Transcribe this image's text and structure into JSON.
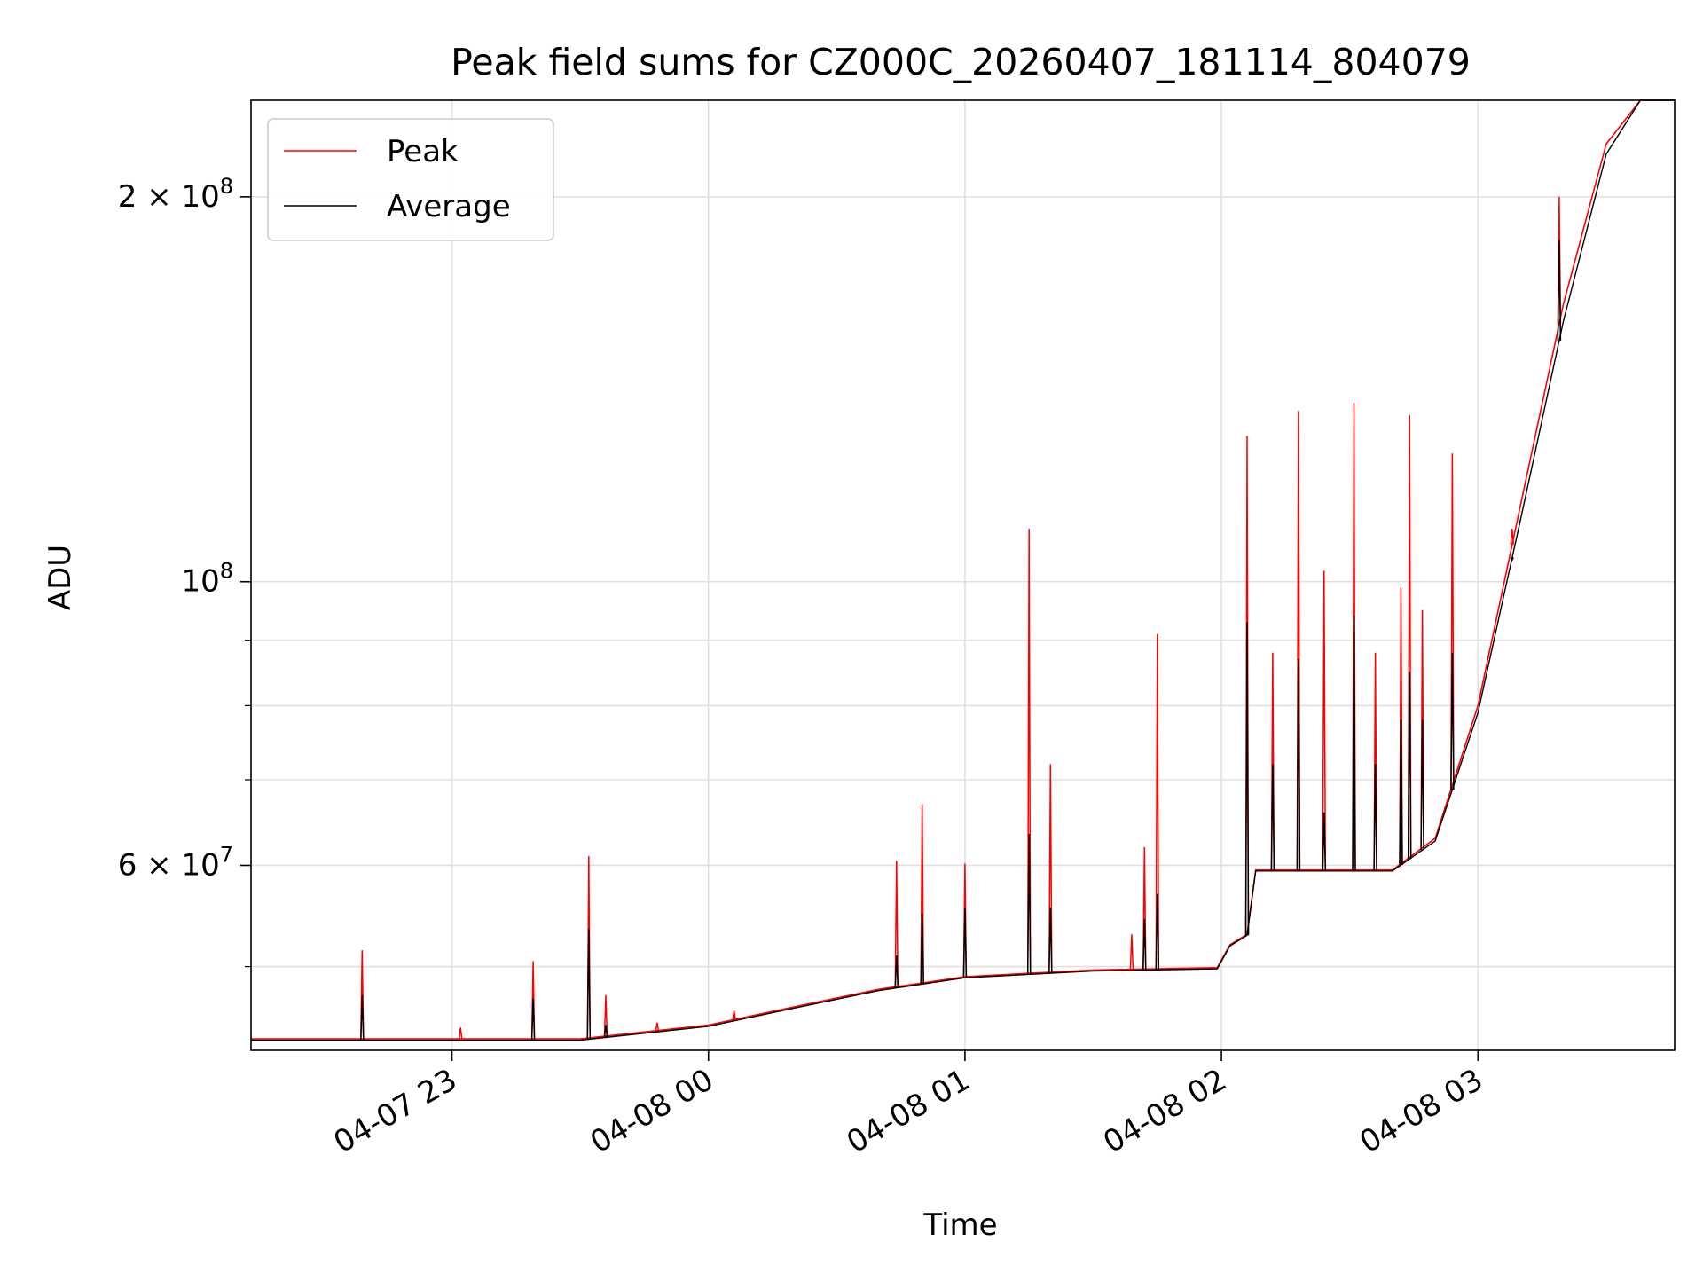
{
  "chart_data": {
    "type": "line",
    "title": "Peak field sums for CZ000C_20260407_181114_804079",
    "xlabel": "Time",
    "ylabel": "ADU",
    "yscale": "log",
    "xlim": [
      "2026-04-07T22:13",
      "2026-04-08T03:46"
    ],
    "ylim": [
      43000000,
      238000000
    ],
    "grid": true,
    "legend_position": "top-left",
    "x_ticks": [
      {
        "time": "2026-04-07T23:00",
        "label": "04-07 23"
      },
      {
        "time": "2026-04-08T00:00",
        "label": "04-08 00"
      },
      {
        "time": "2026-04-08T01:00",
        "label": "04-08 01"
      },
      {
        "time": "2026-04-08T02:00",
        "label": "04-08 02"
      },
      {
        "time": "2026-04-08T03:00",
        "label": "04-08 03"
      }
    ],
    "y_major_ticks": [
      {
        "value": 60000000,
        "mantissa": "6",
        "exponent": "7"
      },
      {
        "value": 100000000,
        "mantissa": "",
        "exponent": "8"
      },
      {
        "value": 200000000,
        "mantissa": "2",
        "exponent": "8"
      }
    ],
    "y_minor_ticks": [
      50000000,
      70000000,
      80000000,
      90000000
    ],
    "series": [
      {
        "name": "Peak",
        "color": "#ff0000",
        "baseline": [
          {
            "t": "2026-04-07T22:13",
            "v": 43900000
          },
          {
            "t": "2026-04-07T23:30",
            "v": 43900000
          },
          {
            "t": "2026-04-08T00:00",
            "v": 45000000
          },
          {
            "t": "2026-04-08T00:20",
            "v": 46500000
          },
          {
            "t": "2026-04-08T00:40",
            "v": 48000000
          },
          {
            "t": "2026-04-08T01:00",
            "v": 49100000
          },
          {
            "t": "2026-04-08T01:30",
            "v": 49700000
          },
          {
            "t": "2026-04-08T01:59",
            "v": 49900000
          },
          {
            "t": "2026-04-08T02:02",
            "v": 52000000
          },
          {
            "t": "2026-04-08T02:06",
            "v": 53000000
          },
          {
            "t": "2026-04-08T02:08",
            "v": 59500000
          },
          {
            "t": "2026-04-08T02:22",
            "v": 59500000
          },
          {
            "t": "2026-04-08T02:40",
            "v": 59500000
          },
          {
            "t": "2026-04-08T02:50",
            "v": 63000000
          },
          {
            "t": "2026-04-08T03:00",
            "v": 80000000
          },
          {
            "t": "2026-04-08T03:10",
            "v": 115000000
          },
          {
            "t": "2026-04-08T03:20",
            "v": 165000000
          },
          {
            "t": "2026-04-08T03:30",
            "v": 220000000
          },
          {
            "t": "2026-04-08T03:38",
            "v": 238000000
          },
          {
            "t": "2026-04-08T03:46",
            "v": 238000000
          }
        ],
        "spikes": [
          {
            "t": "2026-04-07T22:39",
            "v": 51500000
          },
          {
            "t": "2026-04-07T23:02",
            "v": 44800000
          },
          {
            "t": "2026-04-07T23:19",
            "v": 50500000
          },
          {
            "t": "2026-04-07T23:32",
            "v": 61000000
          },
          {
            "t": "2026-04-07T23:36",
            "v": 47500000
          },
          {
            "t": "2026-04-07T23:48",
            "v": 45200000
          },
          {
            "t": "2026-04-08T00:06",
            "v": 46200000
          },
          {
            "t": "2026-04-08T00:44",
            "v": 60500000
          },
          {
            "t": "2026-04-08T00:50",
            "v": 67000000
          },
          {
            "t": "2026-04-08T01:00",
            "v": 60200000
          },
          {
            "t": "2026-04-08T01:15",
            "v": 110000000
          },
          {
            "t": "2026-04-08T01:20",
            "v": 72000000
          },
          {
            "t": "2026-04-08T01:42",
            "v": 62000000
          },
          {
            "t": "2026-04-08T01:39",
            "v": 53000000
          },
          {
            "t": "2026-04-08T01:45",
            "v": 91000000
          },
          {
            "t": "2026-04-08T02:06",
            "v": 130000000
          },
          {
            "t": "2026-04-08T02:12",
            "v": 88000000
          },
          {
            "t": "2026-04-08T02:18",
            "v": 136000000
          },
          {
            "t": "2026-04-08T02:24",
            "v": 102000000
          },
          {
            "t": "2026-04-08T02:31",
            "v": 138000000
          },
          {
            "t": "2026-04-08T02:36",
            "v": 88000000
          },
          {
            "t": "2026-04-08T02:42",
            "v": 99000000
          },
          {
            "t": "2026-04-08T02:44",
            "v": 135000000
          },
          {
            "t": "2026-04-08T02:47",
            "v": 95000000
          },
          {
            "t": "2026-04-08T02:54",
            "v": 126000000
          },
          {
            "t": "2026-04-08T03:08",
            "v": 110000000
          },
          {
            "t": "2026-04-08T03:19",
            "v": 200000000
          }
        ]
      },
      {
        "name": "Average",
        "color": "#000000",
        "baseline": [
          {
            "t": "2026-04-07T22:13",
            "v": 43800000
          },
          {
            "t": "2026-04-07T23:30",
            "v": 43800000
          },
          {
            "t": "2026-04-08T00:00",
            "v": 44900000
          },
          {
            "t": "2026-04-08T00:20",
            "v": 46400000
          },
          {
            "t": "2026-04-08T00:40",
            "v": 47900000
          },
          {
            "t": "2026-04-08T01:00",
            "v": 49000000
          },
          {
            "t": "2026-04-08T01:30",
            "v": 49600000
          },
          {
            "t": "2026-04-08T01:59",
            "v": 49800000
          },
          {
            "t": "2026-04-08T02:02",
            "v": 51900000
          },
          {
            "t": "2026-04-08T02:06",
            "v": 52900000
          },
          {
            "t": "2026-04-08T02:08",
            "v": 59400000
          },
          {
            "t": "2026-04-08T02:22",
            "v": 59400000
          },
          {
            "t": "2026-04-08T02:40",
            "v": 59400000
          },
          {
            "t": "2026-04-08T02:50",
            "v": 62700000
          },
          {
            "t": "2026-04-08T03:00",
            "v": 79000000
          },
          {
            "t": "2026-04-08T03:10",
            "v": 112000000
          },
          {
            "t": "2026-04-08T03:20",
            "v": 160000000
          },
          {
            "t": "2026-04-08T03:30",
            "v": 216000000
          },
          {
            "t": "2026-04-08T03:38",
            "v": 238000000
          },
          {
            "t": "2026-04-08T03:46",
            "v": 238000000
          }
        ],
        "spikes": [
          {
            "t": "2026-04-07T22:39",
            "v": 47500000
          },
          {
            "t": "2026-04-07T23:19",
            "v": 47200000
          },
          {
            "t": "2026-04-07T23:32",
            "v": 53500000
          },
          {
            "t": "2026-04-07T23:36",
            "v": 45000000
          },
          {
            "t": "2026-04-08T00:44",
            "v": 51000000
          },
          {
            "t": "2026-04-08T00:50",
            "v": 55000000
          },
          {
            "t": "2026-04-08T01:00",
            "v": 55500000
          },
          {
            "t": "2026-04-08T01:15",
            "v": 63500000
          },
          {
            "t": "2026-04-08T01:20",
            "v": 55600000
          },
          {
            "t": "2026-04-08T01:42",
            "v": 54500000
          },
          {
            "t": "2026-04-08T01:45",
            "v": 57000000
          },
          {
            "t": "2026-04-08T02:06",
            "v": 93000000
          },
          {
            "t": "2026-04-08T02:12",
            "v": 72000000
          },
          {
            "t": "2026-04-08T02:18",
            "v": 87000000
          },
          {
            "t": "2026-04-08T02:24",
            "v": 66000000
          },
          {
            "t": "2026-04-08T02:31",
            "v": 94000000
          },
          {
            "t": "2026-04-08T02:36",
            "v": 72000000
          },
          {
            "t": "2026-04-08T02:42",
            "v": 78000000
          },
          {
            "t": "2026-04-08T02:44",
            "v": 85000000
          },
          {
            "t": "2026-04-08T02:47",
            "v": 78000000
          },
          {
            "t": "2026-04-08T02:54",
            "v": 88000000
          },
          {
            "t": "2026-04-08T03:08",
            "v": 104000000
          },
          {
            "t": "2026-04-08T03:19",
            "v": 185000000
          }
        ]
      }
    ]
  }
}
